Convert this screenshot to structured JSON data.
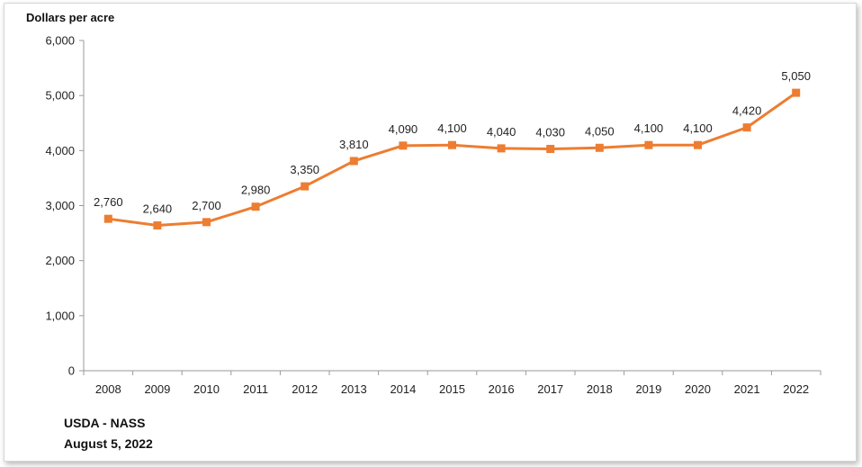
{
  "chart_data": {
    "type": "line",
    "title": "",
    "ylabel": "Dollars per acre",
    "xlabel": "",
    "categories": [
      "2008",
      "2009",
      "2010",
      "2011",
      "2012",
      "2013",
      "2014",
      "2015",
      "2016",
      "2017",
      "2018",
      "2019",
      "2020",
      "2021",
      "2022"
    ],
    "series": [
      {
        "values": [
          2760,
          2640,
          2700,
          2980,
          3350,
          3810,
          4090,
          4100,
          4040,
          4030,
          4050,
          4100,
          4100,
          4420,
          5050
        ],
        "data_labels": [
          "2,760",
          "2,640",
          "2,700",
          "2,980",
          "3,350",
          "3,810",
          "4,090",
          "4,100",
          "4,040",
          "4,030",
          "4,050",
          "4,100",
          "4,100",
          "4,420",
          "5,050"
        ],
        "color": "#ED7D31"
      }
    ],
    "ylim": [
      0,
      6000
    ],
    "yticks": [
      0,
      1000,
      2000,
      3000,
      4000,
      5000,
      6000
    ],
    "ytick_labels": [
      "0",
      "1,000",
      "2,000",
      "3,000",
      "4,000",
      "5,000",
      "6,000"
    ],
    "grid": false,
    "legend": "none",
    "marker": "square"
  },
  "source": {
    "line1": "USDA - NASS",
    "line2": "August 5, 2022"
  }
}
